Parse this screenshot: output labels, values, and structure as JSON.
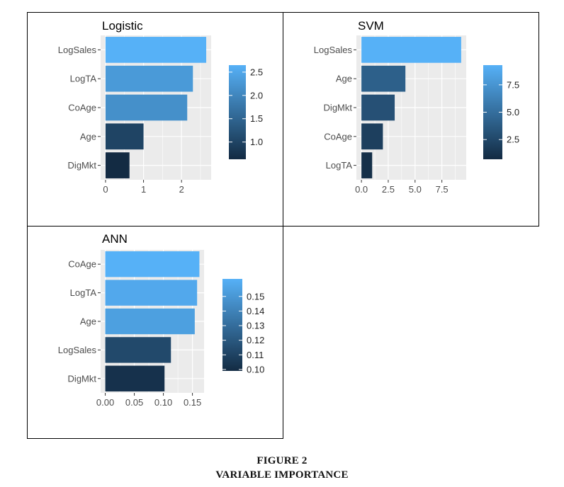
{
  "figure": {
    "label": "FIGURE 2",
    "title": "VARIABLE IMPORTANCE"
  },
  "colors": {
    "low": "#132b43",
    "high": "#56b1f7",
    "panel_bg": "#ebebeb",
    "grid": "#ffffff",
    "frame": "#000000",
    "axis_text": "#4d4d4d"
  },
  "chart_data": [
    {
      "type": "bar",
      "orientation": "horizontal",
      "title": "Logistic",
      "categories": [
        "LogSales",
        "LogTA",
        "CoAge",
        "Age",
        "DigMkt"
      ],
      "values": [
        2.65,
        2.3,
        2.15,
        1.0,
        0.63
      ],
      "xlim": [
        -0.13,
        2.78
      ],
      "xticks": [
        0,
        1,
        2
      ],
      "xtick_labels": [
        "0",
        "1",
        "2"
      ],
      "legend": {
        "position": "right",
        "range": [
          0.63,
          2.65
        ],
        "ticks": [
          1.0,
          1.5,
          2.0,
          2.5
        ],
        "tick_labels": [
          "1.0",
          "1.5",
          "2.0",
          "2.5"
        ]
      },
      "grid": true
    },
    {
      "type": "bar",
      "orientation": "horizontal",
      "title": "SVM",
      "categories": [
        "LogSales",
        "Age",
        "DigMkt",
        "CoAge",
        "LogTA"
      ],
      "values": [
        9.3,
        4.1,
        3.1,
        2.0,
        1.0
      ],
      "xlim": [
        -0.47,
        9.77
      ],
      "xticks": [
        0,
        2.5,
        5,
        7.5
      ],
      "xtick_labels": [
        "0.0",
        "2.5",
        "5.0",
        "7.5"
      ],
      "legend": {
        "position": "right",
        "range": [
          0.7,
          9.3
        ],
        "ticks": [
          2.5,
          5.0,
          7.5
        ],
        "tick_labels": [
          "2.5",
          "5.0",
          "7.5"
        ]
      },
      "grid": true
    },
    {
      "type": "bar",
      "orientation": "horizontal",
      "title": "ANN",
      "categories": [
        "CoAge",
        "LogTA",
        "Age",
        "LogSales",
        "DigMkt"
      ],
      "values": [
        0.162,
        0.158,
        0.154,
        0.113,
        0.102
      ],
      "xlim": [
        -0.008,
        0.17
      ],
      "xticks": [
        0,
        0.05,
        0.1,
        0.15
      ],
      "xtick_labels": [
        "0.00",
        "0.05",
        "0.10",
        "0.15"
      ],
      "legend": {
        "position": "right",
        "range": [
          0.099,
          0.162
        ],
        "ticks": [
          0.1,
          0.11,
          0.12,
          0.13,
          0.14,
          0.15
        ],
        "tick_labels": [
          "0.10",
          "0.11",
          "0.12",
          "0.13",
          "0.14",
          "0.15"
        ]
      },
      "grid": true
    }
  ]
}
